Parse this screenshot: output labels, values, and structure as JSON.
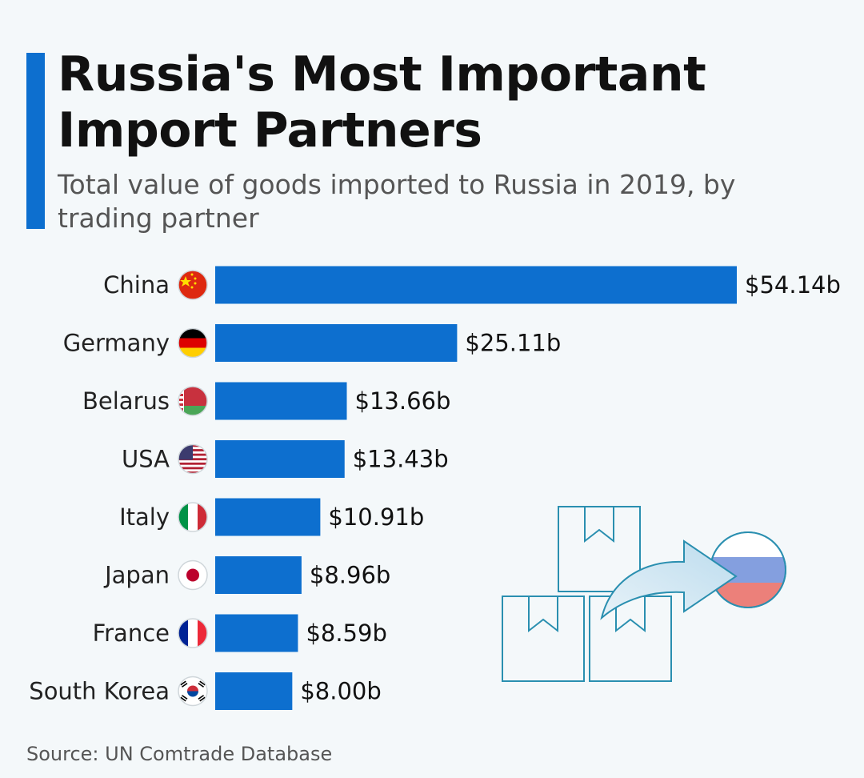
{
  "header": {
    "title": "Russia's Most Important Import Partners",
    "subtitle": "Total value of goods imported to Russia in 2019, by trading partner"
  },
  "footer": {
    "source": "Source: UN Comtrade Database"
  },
  "colors": {
    "accent": "#0d6fcf",
    "bar": "#0d6fcf",
    "illustration_stroke": "#2a8fb0",
    "arrow": "#c9e3f1"
  },
  "illustration": {
    "icons": [
      "box-icon",
      "box-icon",
      "box-icon",
      "arrow-icon",
      "russia-flag-icon"
    ]
  },
  "chart_data": {
    "type": "bar",
    "orientation": "horizontal",
    "categories": [
      "China",
      "Germany",
      "Belarus",
      "USA",
      "Italy",
      "Japan",
      "France",
      "South Korea"
    ],
    "values": [
      54.14,
      25.11,
      13.66,
      13.43,
      10.91,
      8.96,
      8.59,
      8.0
    ],
    "value_labels": [
      "$54.14b",
      "$25.11b",
      "$13.66b",
      "$13.43b",
      "$10.91b",
      "$8.96b",
      "$8.59b",
      "$8.00b"
    ],
    "flag_icons": [
      "china-flag-icon",
      "germany-flag-icon",
      "belarus-flag-icon",
      "usa-flag-icon",
      "italy-flag-icon",
      "japan-flag-icon",
      "france-flag-icon",
      "south-korea-flag-icon"
    ],
    "title": "Russia's Most Important Import Partners",
    "xlabel": "",
    "ylabel": "",
    "xlim": [
      0,
      54.14
    ],
    "grid": false,
    "legend": "none"
  }
}
